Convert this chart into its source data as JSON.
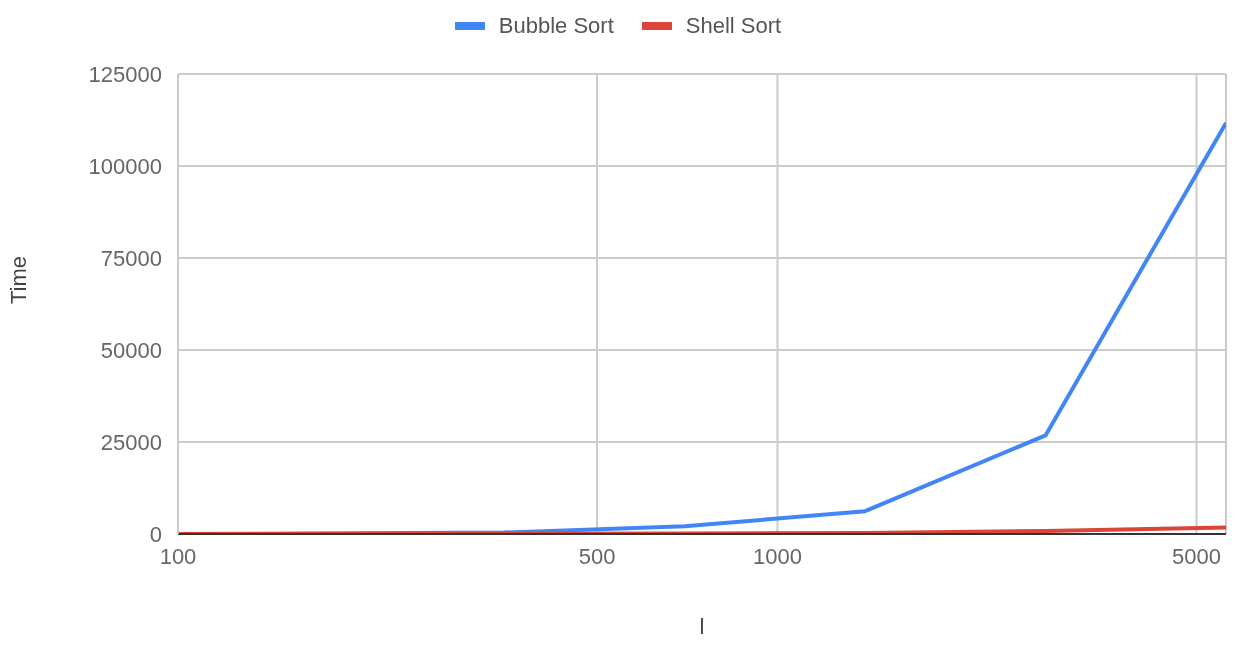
{
  "chart_data": {
    "type": "line",
    "xlabel": "l",
    "ylabel": "Time",
    "x": [
      100,
      350,
      700,
      1400,
      2800,
      5600
    ],
    "series": [
      {
        "name": "Bubble Sort",
        "color": "#4285f4",
        "values": [
          0,
          400,
          2100,
          6200,
          26800,
          111700
        ]
      },
      {
        "name": "Shell Sort",
        "color": "#db4437",
        "values": [
          10,
          60,
          130,
          300,
          800,
          1800
        ]
      }
    ],
    "log": "x",
    "xlim": [
      100,
      5600
    ],
    "xticks": [
      100,
      500,
      1000,
      5000
    ],
    "ylim": [
      0,
      125000
    ],
    "yticks": [
      0,
      25000,
      50000,
      75000,
      100000,
      125000
    ],
    "grid": true,
    "legend": "top",
    "marker": "none",
    "line_style": "solid"
  }
}
